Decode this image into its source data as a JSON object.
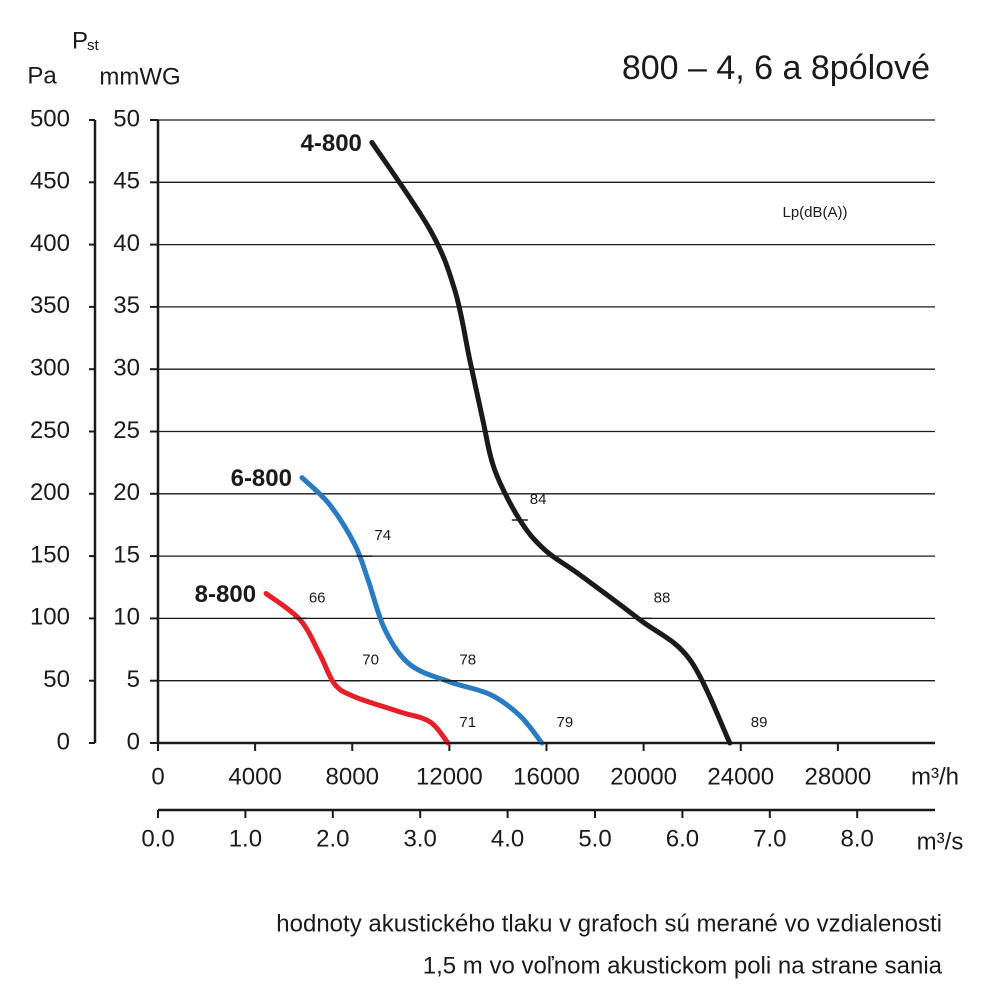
{
  "chart_data": {
    "type": "line",
    "title": "800 – 4, 6 a 8pólové",
    "y_label": "Pa",
    "y2_label_symbol": "P",
    "y2_label_subscript": "st",
    "y2_label": "mmWG",
    "x_label": "m³/h",
    "x2_label": "m³/s",
    "annotation": "Lp(dB(A))",
    "footnote": [
      "hodnoty akustického tlaku v grafoch sú merané vo vzdialenosti",
      "1,5 m vo voľnom akustickom poli na strane sania"
    ],
    "xlim": [
      0,
      32000
    ],
    "xticks": [
      0,
      4000,
      8000,
      12000,
      16000,
      20000,
      24000,
      28000
    ],
    "x2lim": [
      0,
      8.89
    ],
    "x2ticks": [
      {
        "value": 0,
        "label": "0.0"
      },
      {
        "value": 1,
        "label": "1.0"
      },
      {
        "value": 2,
        "label": "2.0"
      },
      {
        "value": 3,
        "label": "3.0"
      },
      {
        "value": 4,
        "label": "4.0"
      },
      {
        "value": 5,
        "label": "5.0"
      },
      {
        "value": 6,
        "label": "6.0"
      },
      {
        "value": 7,
        "label": "7.0"
      },
      {
        "value": 8,
        "label": "8.0"
      }
    ],
    "ylim": [
      0,
      500
    ],
    "yticks": [
      0,
      50,
      100,
      150,
      200,
      250,
      300,
      350,
      400,
      450,
      500
    ],
    "y2lim": [
      0,
      50
    ],
    "y2ticks": [
      0,
      5,
      10,
      15,
      20,
      25,
      30,
      35,
      40,
      45,
      50
    ],
    "grid": true,
    "series": [
      {
        "name": "4-800",
        "color": "#1a1a1a",
        "x": [
          8810,
          11200,
          12230,
          12845,
          13380,
          13870,
          14900,
          15930,
          17370,
          19840,
          21900,
          23550
        ],
        "values": [
          482,
          412,
          363,
          307,
          259,
          219,
          179,
          155,
          135,
          99,
          67,
          0
        ],
        "sound_levels": [
          {
            "x": 14900,
            "y": 179,
            "value": 84
          },
          {
            "x": 20000,
            "y": 100,
            "value": 88
          },
          {
            "x": 24000,
            "y": 0,
            "value": 89
          }
        ]
      },
      {
        "name": "6-800",
        "color": "#2a7ac2",
        "x": [
          5930,
          7080,
          8110,
          8650,
          9345,
          10375,
          12020,
          13670,
          14900,
          15810
        ],
        "values": [
          213,
          191,
          159,
          131,
          91,
          63,
          49,
          39,
          22,
          0
        ],
        "sound_levels": [
          {
            "x": 8500,
            "y": 150,
            "value": 74
          },
          {
            "x": 12000,
            "y": 50,
            "value": 78
          },
          {
            "x": 16000,
            "y": 0,
            "value": 79
          }
        ]
      },
      {
        "name": "8-800",
        "color": "#e61f28",
        "x": [
          4450,
          5845,
          6670,
          7285,
          8110,
          9960,
          11200,
          11940
        ],
        "values": [
          120,
          99,
          71,
          47,
          37,
          25,
          17,
          0
        ],
        "sound_levels": [
          {
            "x": 5800,
            "y": 100,
            "value": 66
          },
          {
            "x": 8000,
            "y": 50,
            "value": 70
          },
          {
            "x": 12000,
            "y": 0,
            "value": 71
          }
        ]
      }
    ]
  }
}
